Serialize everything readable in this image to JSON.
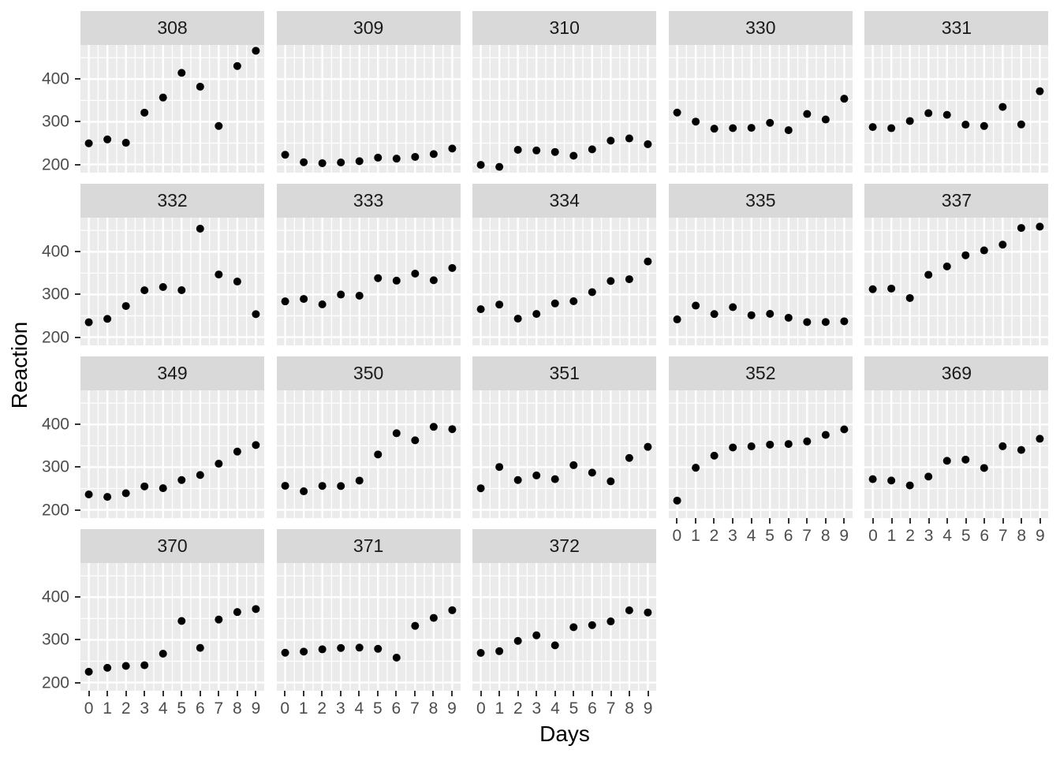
{
  "figure": {
    "y_axis_title": "Reaction",
    "x_axis_title": "Days",
    "colors": {
      "strip_bg": "#d9d9d9",
      "strip_text": "#1a1a1a",
      "panel_bg": "#ebebeb",
      "grid": "#ffffff",
      "point": "#000000",
      "axis_text": "#4d4d4d",
      "tick_mark": "#333333",
      "title_text": "#000000",
      "background": "#ffffff"
    }
  },
  "chart_data": {
    "type": "scatter",
    "title": "",
    "xlabel": "Days",
    "ylabel": "Reaction",
    "facet_variable": "Subject",
    "ncol": 5,
    "grid": "on",
    "legend": "none",
    "xlim": [
      -0.45,
      9.45
    ],
    "ylim": [
      180.7,
      480.0
    ],
    "x": [
      0,
      1,
      2,
      3,
      4,
      5,
      6,
      7,
      8,
      9
    ],
    "x_tick_labels": [
      "0",
      "1",
      "2",
      "3",
      "4",
      "5",
      "6",
      "7",
      "8",
      "9"
    ],
    "x_minor_breaks": [
      0.5,
      1.5,
      2.5,
      3.5,
      4.5,
      5.5,
      6.5,
      7.5,
      8.5
    ],
    "y_tick_values": [
      400,
      300,
      200
    ],
    "y_tick_labels": [
      "400",
      "300",
      "200"
    ],
    "y_major_breaks": [
      200,
      300,
      400
    ],
    "y_minor_breaks": [
      250,
      350,
      450
    ],
    "facets": [
      {
        "label": "308",
        "values": [
          249.56,
          258.7,
          250.8,
          321.44,
          356.85,
          414.69,
          382.2,
          290.15,
          430.59,
          466.35
        ]
      },
      {
        "label": "309",
        "values": [
          222.73,
          205.27,
          202.98,
          204.71,
          207.72,
          215.96,
          213.63,
          217.73,
          224.3,
          237.31
        ]
      },
      {
        "label": "310",
        "values": [
          199.05,
          194.33,
          234.32,
          232.84,
          229.31,
          220.46,
          235.42,
          255.75,
          261.01,
          247.52
        ]
      },
      {
        "label": "330",
        "values": [
          321.54,
          300.43,
          283.86,
          285.13,
          285.8,
          297.59,
          280.24,
          318.26,
          305.35,
          354.05
        ]
      },
      {
        "label": "331",
        "values": [
          287.61,
          285.0,
          301.82,
          320.12,
          316.28,
          293.31,
          290.08,
          334.82,
          293.75,
          371.58
        ]
      },
      {
        "label": "332",
        "values": [
          234.86,
          242.81,
          272.96,
          309.77,
          317.46,
          309.99,
          454.16,
          346.83,
          330.3,
          253.86
        ]
      },
      {
        "label": "333",
        "values": [
          283.84,
          289.56,
          276.77,
          299.81,
          297.17,
          338.17,
          332.33,
          348.84,
          333.36,
          362.04
        ]
      },
      {
        "label": "334",
        "values": [
          265.47,
          276.37,
          243.37,
          254.37,
          279.03,
          284.19,
          305.52,
          331.52,
          335.74,
          377.3
        ]
      },
      {
        "label": "335",
        "values": [
          241.58,
          273.91,
          254.12,
          270.34,
          251.45,
          254.64,
          245.46,
          235.31,
          235.48,
          237.16
        ]
      },
      {
        "label": "337",
        "values": [
          312.37,
          313.81,
          291.61,
          346.12,
          365.73,
          391.85,
          403.26,
          416.69,
          455.86,
          458.92
        ]
      },
      {
        "label": "349",
        "values": [
          236.1,
          230.32,
          238.91,
          254.92,
          250.7,
          269.88,
          281.6,
          308.09,
          336.53,
          351.85
        ]
      },
      {
        "label": "350",
        "values": [
          256.3,
          243.45,
          256.04,
          255.72,
          268.53,
          329.73,
          379.44,
          362.91,
          394.49,
          389.09
        ]
      },
      {
        "label": "351",
        "values": [
          250.52,
          300.4,
          269.89,
          280.59,
          271.89,
          304.63,
          287.17,
          266.79,
          321.54,
          347.58
        ]
      },
      {
        "label": "352",
        "values": [
          221.68,
          298.6,
          326.87,
          346.12,
          348.74,
          352.83,
          354.22,
          360.51,
          375.64,
          388.54
        ]
      },
      {
        "label": "369",
        "values": [
          271.92,
          268.65,
          257.24,
          277.93,
          314.85,
          317.71,
          298.12,
          348.98,
          340.28,
          366.51
        ]
      },
      {
        "label": "370",
        "values": [
          225.26,
          234.52,
          238.9,
          240.47,
          267.55,
          344.19,
          281.15,
          347.59,
          365.16,
          372.25
        ]
      },
      {
        "label": "371",
        "values": [
          269.88,
          272.44,
          277.85,
          280.96,
          281.79,
          279.0,
          258.27,
          332.83,
          351.45,
          369.47
        ]
      },
      {
        "label": "372",
        "values": [
          269.41,
          273.47,
          297.6,
          310.63,
          287.17,
          329.61,
          334.48,
          343.22,
          369.14,
          364.12
        ]
      }
    ]
  }
}
